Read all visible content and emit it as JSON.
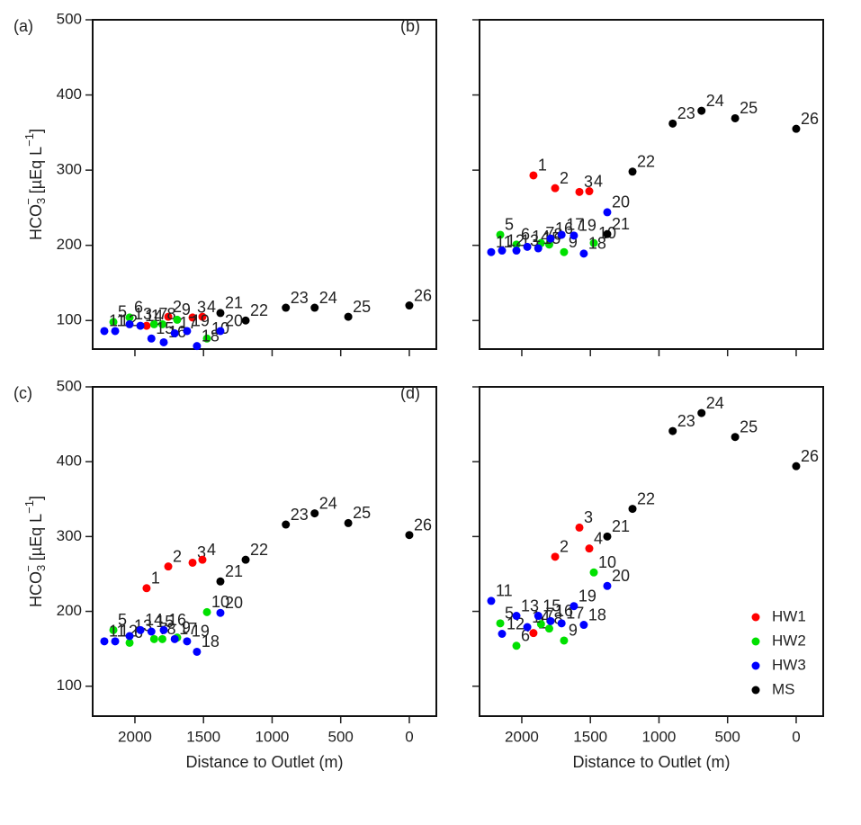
{
  "chart_data": [
    {
      "type": "scatter",
      "panel": "(a)",
      "xlim": [
        2308,
        -197
      ],
      "xticks": [
        2000,
        1500,
        1000,
        500,
        0
      ],
      "ylim": [
        62,
        500
      ],
      "yticks": [
        100,
        200,
        300,
        400,
        500
      ],
      "show_xtick_labels": false,
      "show_ytick_labels": true,
      "ylabel": {
        "text": "HCO",
        "sub": "3",
        "sup": "−",
        "unit": " [µEq L",
        "unit_sup": "−1",
        "close": "]"
      },
      "series": [
        {
          "color": "#ff0000",
          "x": [
            1915,
            1757,
            1580,
            1508
          ],
          "y": [
            93,
            105,
            104,
            105
          ],
          "labels": [
            "1",
            "2",
            "3",
            "4"
          ]
        },
        {
          "color": "#00e000",
          "x": [
            2157,
            2039,
            1860,
            1800,
            1692,
            1475
          ],
          "y": [
            98,
            104,
            95,
            95,
            101,
            76
          ],
          "labels": [
            "5",
            "6",
            "7",
            "8",
            "9",
            "10"
          ]
        },
        {
          "color": "#0000ff",
          "x": [
            2223,
            2144,
            2039,
            1960,
            1880,
            1790,
            1710,
            1548,
            1620,
            1377
          ],
          "y": [
            86,
            86,
            95,
            93,
            76,
            71,
            83,
            66,
            86,
            86
          ],
          "labels": [
            "11",
            "12",
            "13",
            "14",
            "15",
            "16",
            "17",
            "18",
            "19",
            "20"
          ]
        },
        {
          "color": "#000000",
          "x": [
            1377,
            1193,
            900,
            690,
            445,
            0
          ],
          "y": [
            110,
            100,
            117,
            117,
            105,
            120
          ],
          "labels": [
            "21",
            "22",
            "23",
            "24",
            "25",
            "26"
          ]
        }
      ]
    },
    {
      "type": "scatter",
      "panel": "(b)",
      "xlim": [
        2308,
        -197
      ],
      "xticks": [
        2000,
        1500,
        1000,
        500,
        0
      ],
      "ylim": [
        62,
        500
      ],
      "yticks": [
        100,
        200,
        300,
        400,
        500
      ],
      "show_xtick_labels": false,
      "show_ytick_labels": false,
      "series": [
        {
          "color": "#ff0000",
          "x": [
            1915,
            1757,
            1580,
            1508
          ],
          "y": [
            293,
            276,
            271,
            272
          ],
          "labels": [
            "1",
            "2",
            "3",
            "4"
          ]
        },
        {
          "color": "#00e000",
          "x": [
            2157,
            2039,
            1860,
            1800,
            1692,
            1475
          ],
          "y": [
            214,
            201,
            203,
            201,
            191,
            203
          ],
          "labels": [
            "5",
            "6",
            "7",
            "8",
            "9",
            "10"
          ]
        },
        {
          "color": "#0000ff",
          "x": [
            2223,
            2144,
            2039,
            1960,
            1880,
            1790,
            1710,
            1548,
            1620,
            1377
          ],
          "y": [
            191,
            193,
            193,
            198,
            196,
            209,
            214,
            189,
            213,
            244
          ],
          "labels": [
            "11",
            "12",
            "13",
            "14",
            "15",
            "16",
            "17",
            "18",
            "19",
            "20"
          ]
        },
        {
          "color": "#000000",
          "x": [
            1377,
            1193,
            900,
            690,
            445,
            0
          ],
          "y": [
            215,
            298,
            362,
            379,
            369,
            355
          ],
          "labels": [
            "21",
            "22",
            "23",
            "24",
            "25",
            "26"
          ]
        }
      ]
    },
    {
      "type": "scatter",
      "panel": "(c)",
      "xlim": [
        2308,
        -197
      ],
      "xticks": [
        2000,
        1500,
        1000,
        500,
        0
      ],
      "ylim": [
        60,
        500
      ],
      "yticks": [
        100,
        200,
        300,
        400,
        500
      ],
      "show_xtick_labels": true,
      "show_ytick_labels": true,
      "xlabel": "Distance to Outlet (m)",
      "ylabel": {
        "text": "HCO",
        "sub": "3",
        "sup": "−",
        "unit": " [µEq L",
        "unit_sup": "−1",
        "close": "]"
      },
      "series": [
        {
          "color": "#ff0000",
          "x": [
            1915,
            1757,
            1580,
            1508
          ],
          "y": [
            231,
            260,
            265,
            269
          ],
          "labels": [
            "1",
            "2",
            "3",
            "4"
          ]
        },
        {
          "color": "#00e000",
          "x": [
            2157,
            2039,
            1860,
            1800,
            1692,
            1475
          ],
          "y": [
            175,
            158,
            163,
            163,
            165,
            199
          ],
          "labels": [
            "5",
            "6",
            "7",
            "8",
            "9",
            "10"
          ]
        },
        {
          "color": "#0000ff",
          "x": [
            2223,
            2144,
            2039,
            1960,
            1880,
            1790,
            1710,
            1548,
            1620,
            1377
          ],
          "y": [
            160,
            160,
            167,
            175,
            173,
            175,
            163,
            146,
            160,
            198
          ],
          "labels": [
            "11",
            "12",
            "13",
            "14",
            "15",
            "16",
            "17",
            "18",
            "19",
            "20"
          ]
        },
        {
          "color": "#000000",
          "x": [
            1377,
            1193,
            900,
            690,
            445,
            0
          ],
          "y": [
            240,
            269,
            316,
            331,
            318,
            302
          ],
          "labels": [
            "21",
            "22",
            "23",
            "24",
            "25",
            "26"
          ]
        }
      ]
    },
    {
      "type": "scatter",
      "panel": "(d)",
      "xlim": [
        2308,
        -197
      ],
      "xticks": [
        2000,
        1500,
        1000,
        500,
        0
      ],
      "ylim": [
        60,
        500
      ],
      "yticks": [
        100,
        200,
        300,
        400,
        500
      ],
      "show_xtick_labels": true,
      "show_ytick_labels": false,
      "xlabel": "Distance to Outlet (m)",
      "legend": "bottom-right",
      "series": [
        {
          "name": "HW1",
          "color": "#ff0000",
          "x": [
            1915,
            1757,
            1580,
            1508
          ],
          "y": [
            171,
            273,
            312,
            284
          ],
          "labels": [
            "1",
            "2",
            "3",
            "4"
          ]
        },
        {
          "name": "HW2",
          "color": "#00e000",
          "x": [
            2157,
            2039,
            1860,
            1800,
            1692,
            1475
          ],
          "y": [
            184,
            154,
            183,
            177,
            161,
            252
          ],
          "labels": [
            "5",
            "6",
            "7",
            "8",
            "9",
            "10"
          ]
        },
        {
          "name": "HW3",
          "color": "#0000ff",
          "x": [
            2223,
            2144,
            2039,
            1960,
            1880,
            1790,
            1710,
            1548,
            1620,
            1377
          ],
          "y": [
            214,
            170,
            194,
            179,
            194,
            187,
            184,
            182,
            207,
            234
          ],
          "labels": [
            "11",
            "12",
            "13",
            "14",
            "15",
            "16",
            "17",
            "18",
            "19",
            "20"
          ]
        },
        {
          "name": "MS",
          "color": "#000000",
          "x": [
            1377,
            1193,
            900,
            690,
            445,
            0
          ],
          "y": [
            300,
            337,
            441,
            465,
            433,
            394
          ],
          "labels": [
            "21",
            "22",
            "23",
            "24",
            "25",
            "26"
          ]
        }
      ]
    }
  ]
}
